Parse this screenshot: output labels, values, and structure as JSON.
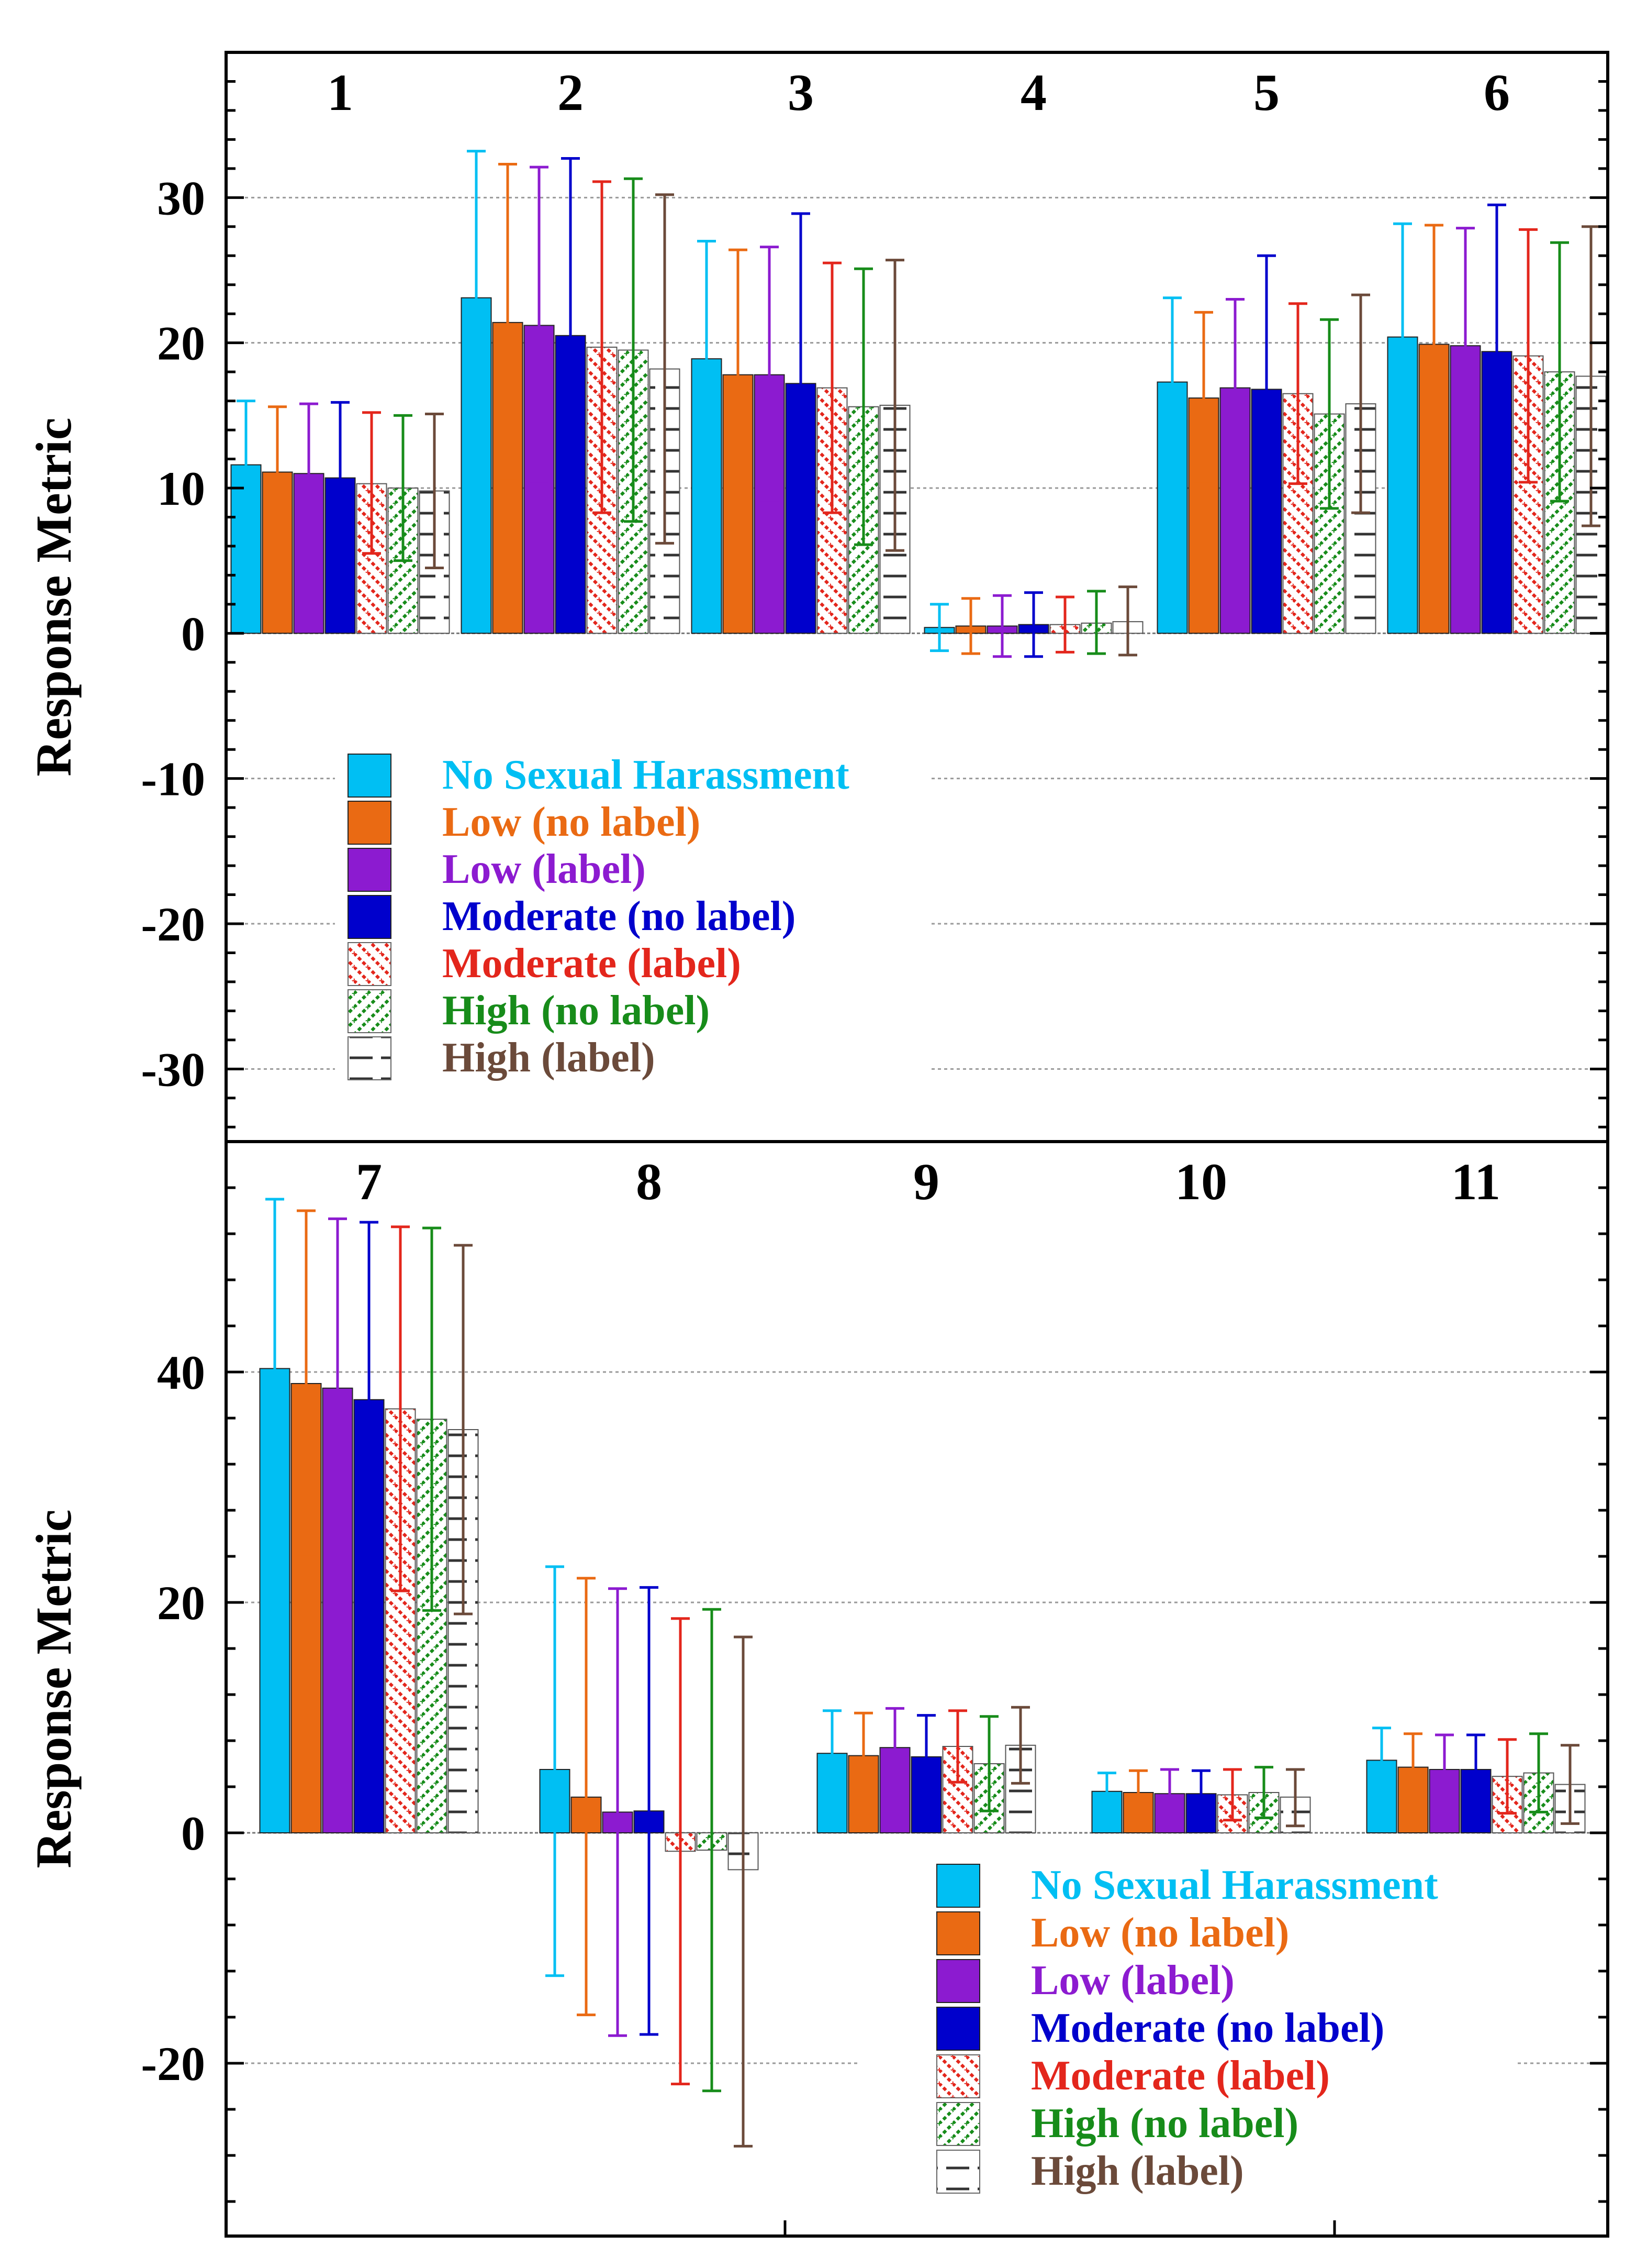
{
  "chart_data": [
    {
      "type": "bar",
      "ylabel": "Response Metric",
      "ylim": [
        -35,
        40
      ],
      "yticks": [
        -30,
        -20,
        -10,
        0,
        10,
        20,
        30
      ],
      "grid": true,
      "legend_position": "center-left",
      "groups": [
        "1",
        "2",
        "3",
        "4",
        "5",
        "6"
      ],
      "series": [
        {
          "name": "No Sexual Harassment",
          "color": "#00BFF3",
          "pattern": "solid",
          "values": [
            11.6,
            23.1,
            18.9,
            0.4,
            17.3,
            20.4
          ],
          "upper": [
            16.0,
            33.2,
            27.0,
            2.0,
            23.1,
            28.2
          ],
          "lower": [
            7.5,
            13.0,
            10.8,
            -1.2,
            11.5,
            12.5
          ]
        },
        {
          "name": "Low (no label)",
          "color": "#EA6A13",
          "pattern": "solid",
          "values": [
            11.1,
            21.4,
            17.8,
            0.5,
            16.2,
            19.9
          ],
          "upper": [
            15.6,
            32.3,
            26.4,
            2.4,
            22.1,
            28.1
          ],
          "lower": [
            6.7,
            10.5,
            9.2,
            -1.4,
            10.3,
            11.7
          ]
        },
        {
          "name": "Low (label)",
          "color": "#8C1BD0",
          "pattern": "solid",
          "values": [
            11.0,
            21.2,
            17.8,
            0.5,
            16.9,
            19.8
          ],
          "upper": [
            15.8,
            32.1,
            26.6,
            2.6,
            23.0,
            27.9
          ],
          "lower": [
            6.2,
            10.3,
            9.0,
            -1.6,
            10.8,
            11.7
          ]
        },
        {
          "name": "Moderate (no label)",
          "color": "#0000CC",
          "pattern": "solid",
          "values": [
            10.7,
            20.5,
            17.2,
            0.6,
            16.8,
            19.4
          ],
          "upper": [
            15.9,
            32.7,
            28.9,
            2.8,
            26.0,
            29.5
          ],
          "lower": [
            5.5,
            8.3,
            5.5,
            -1.6,
            7.6,
            9.3
          ]
        },
        {
          "name": "Moderate (label)",
          "color": "#E3261C",
          "pattern": "diag-red",
          "values": [
            10.3,
            19.7,
            16.9,
            0.6,
            16.5,
            19.1
          ],
          "upper": [
            15.2,
            31.1,
            25.5,
            2.5,
            22.7,
            27.8
          ],
          "lower": [
            5.5,
            8.3,
            8.3,
            -1.3,
            10.3,
            10.4
          ]
        },
        {
          "name": "High (no label)",
          "color": "#178C1A",
          "pattern": "diag-green",
          "values": [
            10.0,
            19.5,
            15.6,
            0.7,
            15.1,
            18.0
          ],
          "upper": [
            15.0,
            31.3,
            25.1,
            2.9,
            21.6,
            26.9
          ],
          "lower": [
            5.0,
            7.7,
            6.1,
            -1.4,
            8.6,
            9.1
          ]
        },
        {
          "name": "High (label)",
          "color": "#6B4A3A",
          "pattern": "horiz",
          "values": [
            9.8,
            18.2,
            15.7,
            0.8,
            15.8,
            17.7
          ],
          "upper": [
            15.1,
            30.2,
            25.7,
            3.2,
            23.3,
            28.0
          ],
          "lower": [
            4.5,
            6.2,
            5.7,
            -1.5,
            8.3,
            7.4
          ]
        }
      ]
    },
    {
      "type": "bar",
      "ylabel": "Response Metric",
      "ylim": [
        -35,
        60
      ],
      "yticks": [
        -20,
        0,
        20,
        40
      ],
      "grid": true,
      "legend_position": "bottom-right",
      "groups": [
        "7",
        "8",
        "9",
        "10",
        "11"
      ],
      "series": [
        {
          "name": "No Sexual Harassment",
          "color": "#00BFF3",
          "pattern": "solid",
          "values": [
            40.3,
            5.5,
            6.9,
            3.6,
            6.3
          ],
          "upper": [
            55.0,
            23.1,
            10.6,
            5.2,
            9.1
          ],
          "lower": [
            25.6,
            -12.4,
            3.2,
            2.0,
            3.4
          ]
        },
        {
          "name": "Low (no label)",
          "color": "#EA6A13",
          "pattern": "solid",
          "values": [
            39.0,
            3.1,
            6.7,
            3.5,
            5.7
          ],
          "upper": [
            54.0,
            22.1,
            10.4,
            5.4,
            8.6
          ],
          "lower": [
            24.2,
            -15.8,
            3.0,
            1.7,
            2.8
          ]
        },
        {
          "name": "Low (label)",
          "color": "#8C1BD0",
          "pattern": "solid",
          "values": [
            38.6,
            1.8,
            7.4,
            3.4,
            5.5
          ],
          "upper": [
            53.3,
            21.2,
            10.8,
            5.5,
            8.5
          ],
          "lower": [
            24.0,
            -17.6,
            4.0,
            1.4,
            2.5
          ]
        },
        {
          "name": "Moderate (no label)",
          "color": "#0000CC",
          "pattern": "solid",
          "values": [
            37.6,
            1.9,
            6.6,
            3.4,
            5.5
          ],
          "upper": [
            53.0,
            21.3,
            10.2,
            5.4,
            8.5
          ],
          "lower": [
            22.2,
            -17.5,
            3.0,
            1.5,
            2.5
          ]
        },
        {
          "name": "Moderate (label)",
          "color": "#E3261C",
          "pattern": "diag-red",
          "values": [
            36.8,
            -1.6,
            7.5,
            3.3,
            4.9
          ],
          "upper": [
            52.6,
            18.6,
            10.6,
            5.5,
            8.1
          ],
          "lower": [
            21.0,
            -21.8,
            4.4,
            1.1,
            1.7
          ]
        },
        {
          "name": "High (no label)",
          "color": "#178C1A",
          "pattern": "diag-green",
          "values": [
            35.9,
            -1.5,
            6.0,
            3.5,
            5.2
          ],
          "upper": [
            52.5,
            19.4,
            10.1,
            5.7,
            8.6
          ],
          "lower": [
            19.3,
            -22.4,
            1.9,
            1.3,
            1.8
          ]
        },
        {
          "name": "High (label)",
          "color": "#6B4A3A",
          "pattern": "horiz",
          "values": [
            35.0,
            -3.2,
            7.6,
            3.1,
            4.2
          ],
          "upper": [
            51.0,
            17.0,
            10.9,
            5.5,
            7.6
          ],
          "lower": [
            19.0,
            -27.2,
            4.3,
            0.6,
            0.8
          ]
        }
      ]
    }
  ]
}
